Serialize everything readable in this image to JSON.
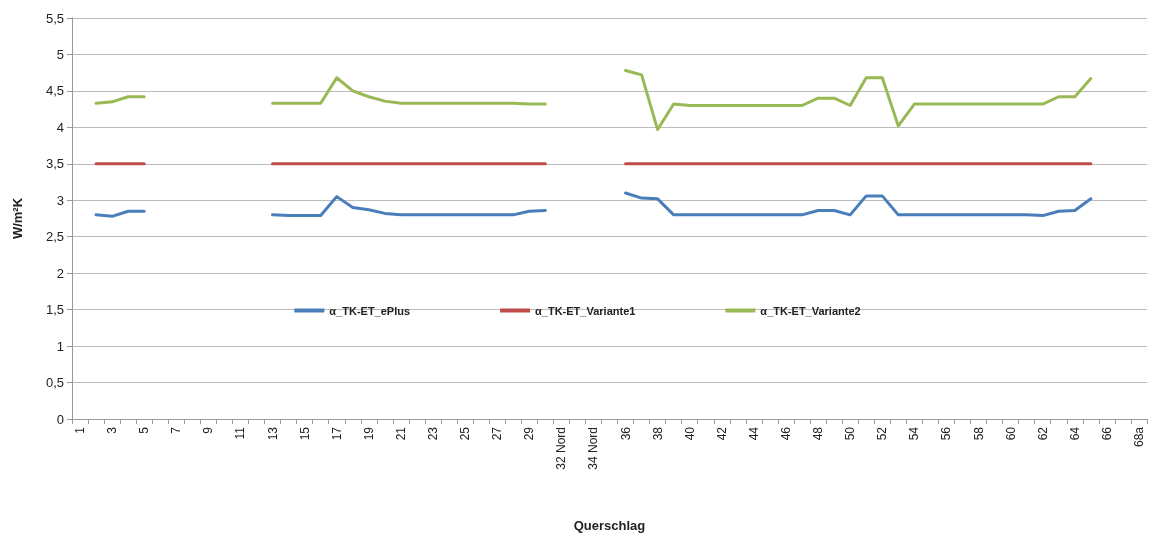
{
  "chart_data": {
    "type": "line",
    "xlabel": "Querschlag",
    "ylabel": "W/m²K",
    "categories": [
      "1",
      null,
      "3",
      null,
      "5",
      null,
      "7",
      null,
      "9",
      null,
      "11",
      null,
      "13",
      null,
      "15",
      null,
      "17",
      null,
      "19",
      null,
      "21",
      null,
      "23",
      null,
      "25",
      null,
      "27",
      null,
      "29",
      null,
      "32 Nord",
      null,
      "34 Nord",
      null,
      "36",
      null,
      "38",
      null,
      "40",
      null,
      "42",
      null,
      "44",
      null,
      "46",
      null,
      "48",
      null,
      "50",
      null,
      "52",
      null,
      "54",
      null,
      "56",
      null,
      "58",
      null,
      "60",
      null,
      "62",
      null,
      "64",
      null,
      "66",
      null,
      "68a"
    ],
    "series": [
      {
        "name": "α_TK-ET_ePlus",
        "color": "#4a7ebb",
        "values": [
          null,
          2.8,
          2.78,
          2.85,
          2.85,
          null,
          null,
          null,
          null,
          null,
          null,
          null,
          2.8,
          2.79,
          2.79,
          2.79,
          3.05,
          2.9,
          2.87,
          2.82,
          2.8,
          2.8,
          2.8,
          2.8,
          2.8,
          2.8,
          2.8,
          2.8,
          2.85,
          2.86,
          null,
          null,
          null,
          null,
          3.1,
          3.03,
          3.02,
          2.8,
          2.8,
          2.8,
          2.8,
          2.8,
          2.8,
          2.8,
          2.8,
          2.8,
          2.86,
          2.86,
          2.8,
          3.06,
          3.06,
          2.8,
          2.8,
          2.8,
          2.8,
          2.8,
          2.8,
          2.8,
          2.8,
          2.8,
          2.79,
          2.85,
          2.86,
          3.02,
          null,
          null,
          null
        ]
      },
      {
        "name": "α_TK-ET_Variante1",
        "color": "#be4b48",
        "values": [
          null,
          3.5,
          3.5,
          3.5,
          3.5,
          null,
          null,
          null,
          null,
          null,
          null,
          null,
          3.5,
          3.5,
          3.5,
          3.5,
          3.5,
          3.5,
          3.5,
          3.5,
          3.5,
          3.5,
          3.5,
          3.5,
          3.5,
          3.5,
          3.5,
          3.5,
          3.5,
          3.5,
          null,
          null,
          null,
          null,
          3.5,
          3.5,
          3.5,
          3.5,
          3.5,
          3.5,
          3.5,
          3.5,
          3.5,
          3.5,
          3.5,
          3.5,
          3.5,
          3.5,
          3.5,
          3.5,
          3.5,
          3.5,
          3.5,
          3.5,
          3.5,
          3.5,
          3.5,
          3.5,
          3.5,
          3.5,
          3.5,
          3.5,
          3.5,
          3.5,
          null,
          null,
          null
        ]
      },
      {
        "name": "α_TK-ET_Variante2",
        "color": "#98b954",
        "values": [
          null,
          4.33,
          4.35,
          4.42,
          4.42,
          null,
          null,
          null,
          null,
          null,
          null,
          null,
          4.33,
          4.33,
          4.33,
          4.33,
          4.68,
          4.5,
          4.42,
          4.36,
          4.33,
          4.33,
          4.33,
          4.33,
          4.33,
          4.33,
          4.33,
          4.33,
          4.32,
          4.32,
          null,
          null,
          null,
          null,
          4.78,
          4.72,
          3.97,
          4.32,
          4.3,
          4.3,
          4.3,
          4.3,
          4.3,
          4.3,
          4.3,
          4.3,
          4.4,
          4.4,
          4.3,
          4.68,
          4.68,
          4.02,
          4.32,
          4.32,
          4.32,
          4.32,
          4.32,
          4.32,
          4.32,
          4.32,
          4.32,
          4.42,
          4.42,
          4.67,
          null,
          null,
          null
        ]
      }
    ],
    "ylim": [
      0,
      5.5
    ],
    "yticks": [
      0,
      {
        "value": 0.5,
        "label": "0,5"
      },
      1,
      {
        "value": 1.5,
        "label": "1,5"
      },
      2,
      {
        "value": 2.5,
        "label": "2,5"
      },
      3,
      {
        "value": 3.5,
        "label": "3,5"
      },
      4,
      {
        "value": 4.5,
        "label": "4,5"
      },
      5,
      {
        "value": 5.5,
        "label": "5,5"
      }
    ],
    "grid": "y",
    "legend": "center",
    "marker": "none",
    "line_style": "solid"
  }
}
